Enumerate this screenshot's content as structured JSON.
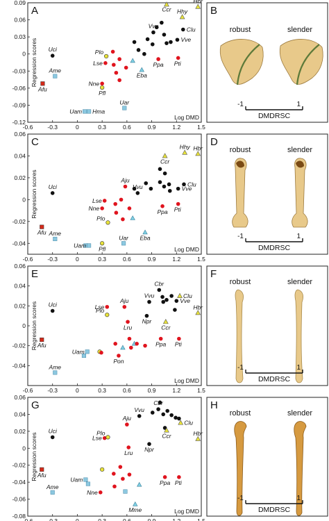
{
  "colors": {
    "group_black": "#111111",
    "group_red": "#e0141e",
    "group_yellow": "#e8e23a",
    "group_cyan": "#7fd0e4",
    "group_cyan_square": "#8cc8e0",
    "afu_square": "#d42a1a",
    "bone_light": "#e8c98a",
    "bone_dark": "#b98a3a"
  },
  "panels_right": [
    {
      "letter": "B",
      "robust": "robust",
      "slender": "slender",
      "axis_label": "DMDRSC",
      "min": "-1",
      "max": "1",
      "bone": "sternum"
    },
    {
      "letter": "D",
      "robust": "robust",
      "slender": "slender",
      "axis_label": "DMDRSC",
      "min": "-1",
      "max": "1",
      "bone": "humerus"
    },
    {
      "letter": "F",
      "robust": "robust",
      "slender": "slender",
      "axis_label": "DMDRSC",
      "min": "-1",
      "max": "1",
      "bone": "ulna"
    },
    {
      "letter": "H",
      "robust": "robust",
      "slender": "slender",
      "axis_label": "DMDRSC",
      "min": "-1",
      "max": "1",
      "bone": "carpometacarpus"
    }
  ],
  "chart_data": [
    {
      "type": "scatter",
      "letter": "A",
      "ylabel": "Regression scores",
      "xlabel": "Log DMD",
      "xlim": [
        -0.6,
        1.5
      ],
      "ylim": [
        -0.12,
        0.09
      ],
      "xticks": [
        "-0.6",
        "-0.3",
        "0",
        "0.3",
        "0.6",
        "0.9",
        "1.2",
        "1.5"
      ],
      "yticks": [
        "0.09",
        "0.06",
        "0.03",
        "0",
        "-0.03",
        "-0.06",
        "-0.09",
        "-0.12"
      ],
      "points": [
        {
          "x": -0.42,
          "y": -0.052,
          "g": "sq_red",
          "label": "Afu"
        },
        {
          "x": -0.27,
          "y": -0.039,
          "g": "sq_cyan",
          "label": "Ame"
        },
        {
          "x": -0.3,
          "y": -0.003,
          "g": "black",
          "label": "Uci"
        },
        {
          "x": 0.09,
          "y": -0.101,
          "g": "sq_cyan",
          "label": "Uam"
        },
        {
          "x": 0.14,
          "y": -0.101,
          "g": "sq_cyan",
          "label": "Hma"
        },
        {
          "x": 0.57,
          "y": -0.095,
          "g": "sq_cyan",
          "label": "Uar"
        },
        {
          "x": 0.3,
          "y": -0.052,
          "g": "red",
          "label": "Nne"
        },
        {
          "x": 0.3,
          "y": -0.059,
          "g": "yellow",
          "label": "Pfl"
        },
        {
          "x": 0.34,
          "y": -0.016,
          "g": "red",
          "label": "Lse"
        },
        {
          "x": 0.35,
          "y": -0.004,
          "g": "yellow",
          "label": "Plo"
        },
        {
          "x": 0.44,
          "y": -0.019,
          "g": "red"
        },
        {
          "x": 0.47,
          "y": -0.033,
          "g": "red"
        },
        {
          "x": 0.51,
          "y": -0.009,
          "g": "red"
        },
        {
          "x": 0.51,
          "y": -0.046,
          "g": "red"
        },
        {
          "x": 0.59,
          "y": -0.024,
          "g": "red"
        },
        {
          "x": 0.43,
          "y": 0.004,
          "g": "red"
        },
        {
          "x": 0.67,
          "y": -0.012,
          "g": "tri_cyan"
        },
        {
          "x": 0.78,
          "y": -0.028,
          "g": "tri_cyan",
          "label": "Eba"
        },
        {
          "x": 0.69,
          "y": 0.021,
          "g": "black"
        },
        {
          "x": 0.74,
          "y": 0.007,
          "g": "black"
        },
        {
          "x": 0.81,
          "y": 0.0,
          "g": "black"
        },
        {
          "x": 0.85,
          "y": 0.026,
          "g": "black"
        },
        {
          "x": 0.91,
          "y": 0.017,
          "g": "black"
        },
        {
          "x": 0.92,
          "y": 0.038,
          "g": "black",
          "label": "Vvu"
        },
        {
          "x": 0.96,
          "y": 0.047,
          "g": "black"
        },
        {
          "x": 1.02,
          "y": 0.055,
          "g": "black"
        },
        {
          "x": 1.05,
          "y": 0.034,
          "g": "black"
        },
        {
          "x": 1.08,
          "y": 0.019,
          "g": "black"
        },
        {
          "x": 1.13,
          "y": 0.021,
          "g": "black"
        },
        {
          "x": 1.21,
          "y": 0.025,
          "g": "black",
          "label": "Vve"
        },
        {
          "x": 1.28,
          "y": 0.043,
          "g": "black",
          "label": "Clu"
        },
        {
          "x": 0.98,
          "y": -0.009,
          "g": "red",
          "label": "Ppa"
        },
        {
          "x": 1.22,
          "y": -0.007,
          "g": "red",
          "label": "Pti"
        },
        {
          "x": 1.08,
          "y": 0.087,
          "g": "tri_yellow",
          "label": "Ccr"
        },
        {
          "x": 1.27,
          "y": 0.065,
          "g": "tri_yellow",
          "label": "Hhy"
        },
        {
          "x": 1.46,
          "y": 0.083,
          "g": "tri_yellow",
          "label": "Hbr"
        }
      ]
    },
    {
      "type": "scatter",
      "letter": "C",
      "ylabel": "Regression scores",
      "xlabel": "Log DMD",
      "xlim": [
        -0.6,
        1.5
      ],
      "ylim": [
        -0.05,
        0.06
      ],
      "xticks": [
        "-0.6",
        "-0.3",
        "0",
        "0.3",
        "0.6",
        "0.9",
        "1.2",
        "1.5"
      ],
      "yticks": [
        "0.06",
        "0.04",
        "0.02",
        "0",
        "-0.02",
        "-0.04"
      ],
      "points": [
        {
          "x": -0.43,
          "y": -0.025,
          "g": "sq_red",
          "label": "Afu"
        },
        {
          "x": -0.27,
          "y": -0.036,
          "g": "sq_cyan",
          "label": "Ame"
        },
        {
          "x": -0.3,
          "y": 0.006,
          "g": "black",
          "label": "Uci"
        },
        {
          "x": 0.1,
          "y": -0.042,
          "g": "sq_cyan"
        },
        {
          "x": 0.14,
          "y": -0.042,
          "g": "sq_cyan",
          "label": "Uam"
        },
        {
          "x": 0.56,
          "y": -0.04,
          "g": "sq_cyan",
          "label": "Uar"
        },
        {
          "x": 0.3,
          "y": -0.04,
          "g": "yellow",
          "label": "Pfl"
        },
        {
          "x": 0.37,
          "y": -0.021,
          "g": "yellow",
          "label": "Plo"
        },
        {
          "x": 0.3,
          "y": -0.008,
          "g": "red",
          "label": "Nne"
        },
        {
          "x": 0.33,
          "y": -0.001,
          "g": "red",
          "label": "Lse"
        },
        {
          "x": 0.46,
          "y": -0.004,
          "g": "red"
        },
        {
          "x": 0.47,
          "y": -0.012,
          "g": "red"
        },
        {
          "x": 0.53,
          "y": 0.0,
          "g": "red"
        },
        {
          "x": 0.55,
          "y": -0.018,
          "g": "red"
        },
        {
          "x": 0.58,
          "y": 0.012,
          "g": "red",
          "label": "Aju"
        },
        {
          "x": 0.63,
          "y": -0.008,
          "g": "red"
        },
        {
          "x": 0.67,
          "y": -0.017,
          "g": "tri_cyan"
        },
        {
          "x": 0.82,
          "y": -0.03,
          "g": "tri_cyan",
          "label": "Eba"
        },
        {
          "x": 0.69,
          "y": 0.01,
          "g": "black"
        },
        {
          "x": 0.73,
          "y": 0.006,
          "g": "black",
          "label": "Vvu"
        },
        {
          "x": 0.83,
          "y": 0.015,
          "g": "black"
        },
        {
          "x": 0.89,
          "y": 0.01,
          "g": "black"
        },
        {
          "x": 1.0,
          "y": 0.028,
          "g": "black"
        },
        {
          "x": 1.06,
          "y": 0.024,
          "g": "black"
        },
        {
          "x": 1.0,
          "y": 0.016,
          "g": "black"
        },
        {
          "x": 1.05,
          "y": 0.012,
          "g": "black"
        },
        {
          "x": 1.11,
          "y": 0.014,
          "g": "black"
        },
        {
          "x": 1.12,
          "y": 0.008,
          "g": "black"
        },
        {
          "x": 1.22,
          "y": 0.01,
          "g": "black",
          "label": "Vve"
        },
        {
          "x": 1.29,
          "y": 0.014,
          "g": "black",
          "label": "Clu"
        },
        {
          "x": 1.03,
          "y": -0.006,
          "g": "red",
          "label": "Ppa"
        },
        {
          "x": 1.22,
          "y": -0.004,
          "g": "red",
          "label": "Pti"
        },
        {
          "x": 1.06,
          "y": 0.04,
          "g": "tri_yellow",
          "label": "Ccr"
        },
        {
          "x": 1.3,
          "y": 0.043,
          "g": "tri_yellow",
          "label": "Hhy"
        },
        {
          "x": 1.46,
          "y": 0.042,
          "g": "tri_yellow",
          "label": "Hbr"
        }
      ]
    },
    {
      "type": "scatter",
      "letter": "E",
      "ylabel": "Regression scores",
      "xlabel": "Log DMD",
      "xlim": [
        -0.6,
        1.5
      ],
      "ylim": [
        -0.06,
        0.06
      ],
      "xticks": [
        "-0.6",
        "-0.3",
        "0",
        "0.3",
        "0.6",
        "0.9",
        "1.2",
        "1.5"
      ],
      "yticks": [
        "0.06",
        "0.04",
        "0.02",
        "0",
        "-0.02",
        "-0.04"
      ],
      "points": [
        {
          "x": -0.43,
          "y": -0.014,
          "g": "sq_red",
          "label": "Afu"
        },
        {
          "x": -0.27,
          "y": -0.047,
          "g": "sq_cyan",
          "label": "Ame"
        },
        {
          "x": -0.3,
          "y": 0.015,
          "g": "black",
          "label": "Uci"
        },
        {
          "x": 0.08,
          "y": -0.03,
          "g": "sq_cyan"
        },
        {
          "x": 0.12,
          "y": -0.026,
          "g": "sq_cyan",
          "label": "Uam"
        },
        {
          "x": 0.27,
          "y": -0.026,
          "g": "yellow"
        },
        {
          "x": 0.29,
          "y": -0.027,
          "g": "red"
        },
        {
          "x": 0.36,
          "y": 0.011,
          "g": "yellow",
          "label": "Plo"
        },
        {
          "x": 0.36,
          "y": 0.019,
          "g": "red",
          "label": "Lse"
        },
        {
          "x": 0.46,
          "y": -0.018,
          "g": "red"
        },
        {
          "x": 0.5,
          "y": -0.03,
          "g": "red",
          "label": "Pon"
        },
        {
          "x": 0.55,
          "y": -0.022,
          "g": "tri_cyan"
        },
        {
          "x": 0.57,
          "y": 0.019,
          "g": "red",
          "label": "Aju"
        },
        {
          "x": 0.61,
          "y": 0.004,
          "g": "red",
          "label": "Lru"
        },
        {
          "x": 0.63,
          "y": -0.013,
          "g": "red"
        },
        {
          "x": 0.65,
          "y": -0.022,
          "g": "red"
        },
        {
          "x": 0.69,
          "y": -0.018,
          "g": "tri_cyan"
        },
        {
          "x": 0.72,
          "y": -0.018,
          "g": "red"
        },
        {
          "x": 0.82,
          "y": -0.02,
          "g": "red"
        },
        {
          "x": 0.84,
          "y": 0.01,
          "g": "black",
          "label": "Npr"
        },
        {
          "x": 0.87,
          "y": 0.024,
          "g": "black",
          "label": "Vvu"
        },
        {
          "x": 0.99,
          "y": 0.036,
          "g": "black",
          "label": "Cbr"
        },
        {
          "x": 1.03,
          "y": 0.029,
          "g": "black"
        },
        {
          "x": 1.04,
          "y": 0.024,
          "g": "black"
        },
        {
          "x": 1.08,
          "y": 0.026,
          "g": "black"
        },
        {
          "x": 1.14,
          "y": 0.03,
          "g": "black"
        },
        {
          "x": 1.18,
          "y": 0.016,
          "g": "black"
        },
        {
          "x": 1.2,
          "y": 0.025,
          "g": "black",
          "label": "Vve"
        },
        {
          "x": 1.24,
          "y": 0.03,
          "g": "tri_yellow",
          "label": "Clu"
        },
        {
          "x": 1.07,
          "y": 0.004,
          "g": "tri_yellow",
          "label": "Ccr"
        },
        {
          "x": 1.01,
          "y": -0.013,
          "g": "red",
          "label": "Ppa"
        },
        {
          "x": 1.23,
          "y": -0.013,
          "g": "red",
          "label": "Pti"
        },
        {
          "x": 1.46,
          "y": 0.013,
          "g": "tri_yellow",
          "label": "Hbr"
        }
      ]
    },
    {
      "type": "scatter",
      "letter": "G",
      "ylabel": "Regression scores",
      "xlabel": "Log DMD",
      "xlim": [
        -0.6,
        1.5
      ],
      "ylim": [
        -0.08,
        0.06
      ],
      "xticks": [
        "-0.6",
        "-0.3",
        "0",
        "0.3",
        "0.6",
        "0.9",
        "1.2",
        "1.5"
      ],
      "yticks": [
        "0.06",
        "0.04",
        "0.02",
        "0",
        "-0.02",
        "-0.04",
        "-0.06",
        "-0.08"
      ],
      "points": [
        {
          "x": -0.43,
          "y": -0.025,
          "g": "sq_red",
          "label": "Afu"
        },
        {
          "x": -0.3,
          "y": -0.052,
          "g": "sq_cyan",
          "label": "Ame"
        },
        {
          "x": -0.3,
          "y": 0.013,
          "g": "black",
          "label": "Uci"
        },
        {
          "x": 0.1,
          "y": -0.037,
          "g": "sq_cyan",
          "label": "Uam"
        },
        {
          "x": 0.13,
          "y": -0.042,
          "g": "sq_cyan"
        },
        {
          "x": 0.28,
          "y": -0.052,
          "g": "red",
          "label": "Nne"
        },
        {
          "x": 0.3,
          "y": -0.025,
          "g": "yellow"
        },
        {
          "x": 0.33,
          "y": 0.012,
          "g": "red",
          "label": "Lse"
        },
        {
          "x": 0.37,
          "y": 0.013,
          "g": "yellow",
          "label": "Plo"
        },
        {
          "x": 0.44,
          "y": -0.03,
          "g": "red"
        },
        {
          "x": 0.45,
          "y": -0.045,
          "g": "red"
        },
        {
          "x": 0.52,
          "y": -0.022,
          "g": "red"
        },
        {
          "x": 0.55,
          "y": -0.036,
          "g": "red"
        },
        {
          "x": 0.58,
          "y": -0.051,
          "g": "sq_cyan"
        },
        {
          "x": 0.6,
          "y": 0.028,
          "g": "red",
          "label": "Aju"
        },
        {
          "x": 0.62,
          "y": 0.001,
          "g": "red",
          "label": "Lru"
        },
        {
          "x": 0.63,
          "y": -0.031,
          "g": "red"
        },
        {
          "x": 0.7,
          "y": -0.066,
          "g": "tri_cyan",
          "label": "Mme"
        },
        {
          "x": 0.75,
          "y": -0.043,
          "g": "tri_cyan"
        },
        {
          "x": 0.75,
          "y": 0.038,
          "g": "black",
          "label": "Vvu"
        },
        {
          "x": 0.87,
          "y": 0.005,
          "g": "black",
          "label": "Npr"
        },
        {
          "x": 0.91,
          "y": 0.042,
          "g": "black"
        },
        {
          "x": 0.98,
          "y": 0.046,
          "g": "black",
          "label": "Cbr"
        },
        {
          "x": 1.0,
          "y": 0.054,
          "g": "black"
        },
        {
          "x": 1.04,
          "y": 0.04,
          "g": "black"
        },
        {
          "x": 1.06,
          "y": 0.024,
          "g": "black"
        },
        {
          "x": 1.09,
          "y": 0.044,
          "g": "black"
        },
        {
          "x": 1.14,
          "y": 0.039,
          "g": "black"
        },
        {
          "x": 1.19,
          "y": 0.036,
          "g": "black"
        },
        {
          "x": 1.23,
          "y": 0.035,
          "g": "black"
        },
        {
          "x": 1.25,
          "y": 0.03,
          "g": "tri_yellow",
          "label": "Clu"
        },
        {
          "x": 1.08,
          "y": 0.021,
          "g": "tri_yellow",
          "label": "Ccr"
        },
        {
          "x": 1.06,
          "y": -0.034,
          "g": "red",
          "label": "Ppa"
        },
        {
          "x": 1.23,
          "y": -0.034,
          "g": "red",
          "label": "Pti"
        },
        {
          "x": 1.46,
          "y": 0.011,
          "g": "tri_yellow",
          "label": "Hbr"
        }
      ]
    }
  ]
}
